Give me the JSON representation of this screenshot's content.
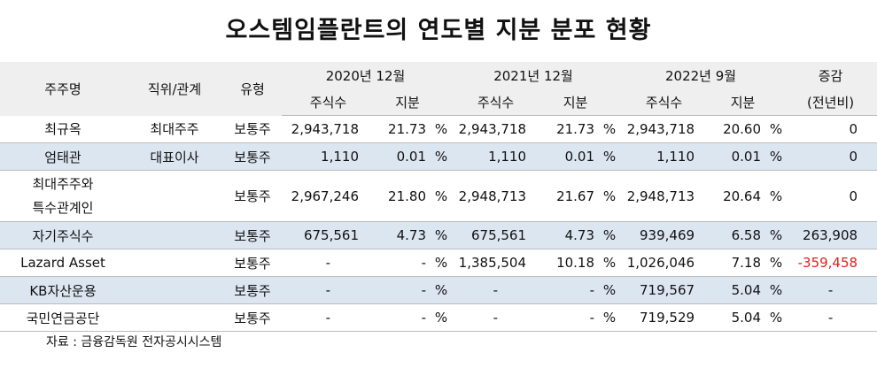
{
  "title": "오스템임플란트의 연도별 지분 분포 현황",
  "header": {
    "holder": "주주명",
    "position": "직위/관계",
    "type": "유형",
    "periods": [
      "2020년 12월",
      "2021년 12월",
      "2022년 9월"
    ],
    "shares": "주식수",
    "stake": "지분",
    "change": "증감",
    "change_sub": "(전년비)"
  },
  "rows": [
    {
      "holder": "최규옥",
      "position": "최대주주",
      "type": "보통주",
      "s2020": "2,943,718",
      "p2020": "21.73",
      "pc1": "%",
      "s2021": "2,943,718",
      "p2021": "21.73",
      "pc2": "%",
      "s2022": "2,943,718",
      "p2022": "20.60",
      "pc3": "%",
      "change": "0"
    },
    {
      "holder": "엄태관",
      "position": "대표이사",
      "type": "보통주",
      "s2020": "1,110",
      "p2020": "0.01",
      "pc1": "%",
      "s2021": "1,110",
      "p2021": "0.01",
      "pc2": "%",
      "s2022": "1,110",
      "p2022": "0.01",
      "pc3": "%",
      "change": "0"
    },
    {
      "holder_line1": "최대주주와",
      "holder_line2": "특수관계인",
      "position": "",
      "type": "보통주",
      "s2020": "2,967,246",
      "p2020": "21.80",
      "pc1": "%",
      "s2021": "2,948,713",
      "p2021": "21.67",
      "pc2": "%",
      "s2022": "2,948,713",
      "p2022": "20.64",
      "pc3": "%",
      "change": "0"
    },
    {
      "holder": "자기주식수",
      "position": "",
      "type": "보통주",
      "s2020": "675,561",
      "p2020": "4.73",
      "pc1": "%",
      "s2021": "675,561",
      "p2021": "4.73",
      "pc2": "%",
      "s2022": "939,469",
      "p2022": "6.58",
      "pc3": "%",
      "change": "263,908"
    },
    {
      "holder": "Lazard Asset",
      "position": "",
      "type": "보통주",
      "s2020": "-",
      "p2020": "-",
      "pc1": "%",
      "s2021": "1,385,504",
      "p2021": "10.18",
      "pc2": "%",
      "s2022": "1,026,046",
      "p2022": "7.18",
      "pc3": "%",
      "change": "-359,458"
    },
    {
      "holder": "KB자산운용",
      "position": "",
      "type": "보통주",
      "s2020": "-",
      "p2020": "-",
      "pc1": "%",
      "s2021": "-",
      "p2021": "-",
      "pc2": "%",
      "s2022": "719,567",
      "p2022": "5.04",
      "pc3": "%",
      "change": "-"
    },
    {
      "holder": "국민연금공단",
      "position": "",
      "type": "보통주",
      "s2020": "-",
      "p2020": "-",
      "pc1": "%",
      "s2021": "-",
      "p2021": "-",
      "pc2": "%",
      "s2022": "719,529",
      "p2022": "5.04",
      "pc3": "%",
      "change": "-"
    }
  ],
  "colors": {
    "band": "#dce6f1",
    "header_bg": "#efefef",
    "negative": "#e0201c"
  },
  "source": "자료 : 금융감독원 전자공시시스템"
}
